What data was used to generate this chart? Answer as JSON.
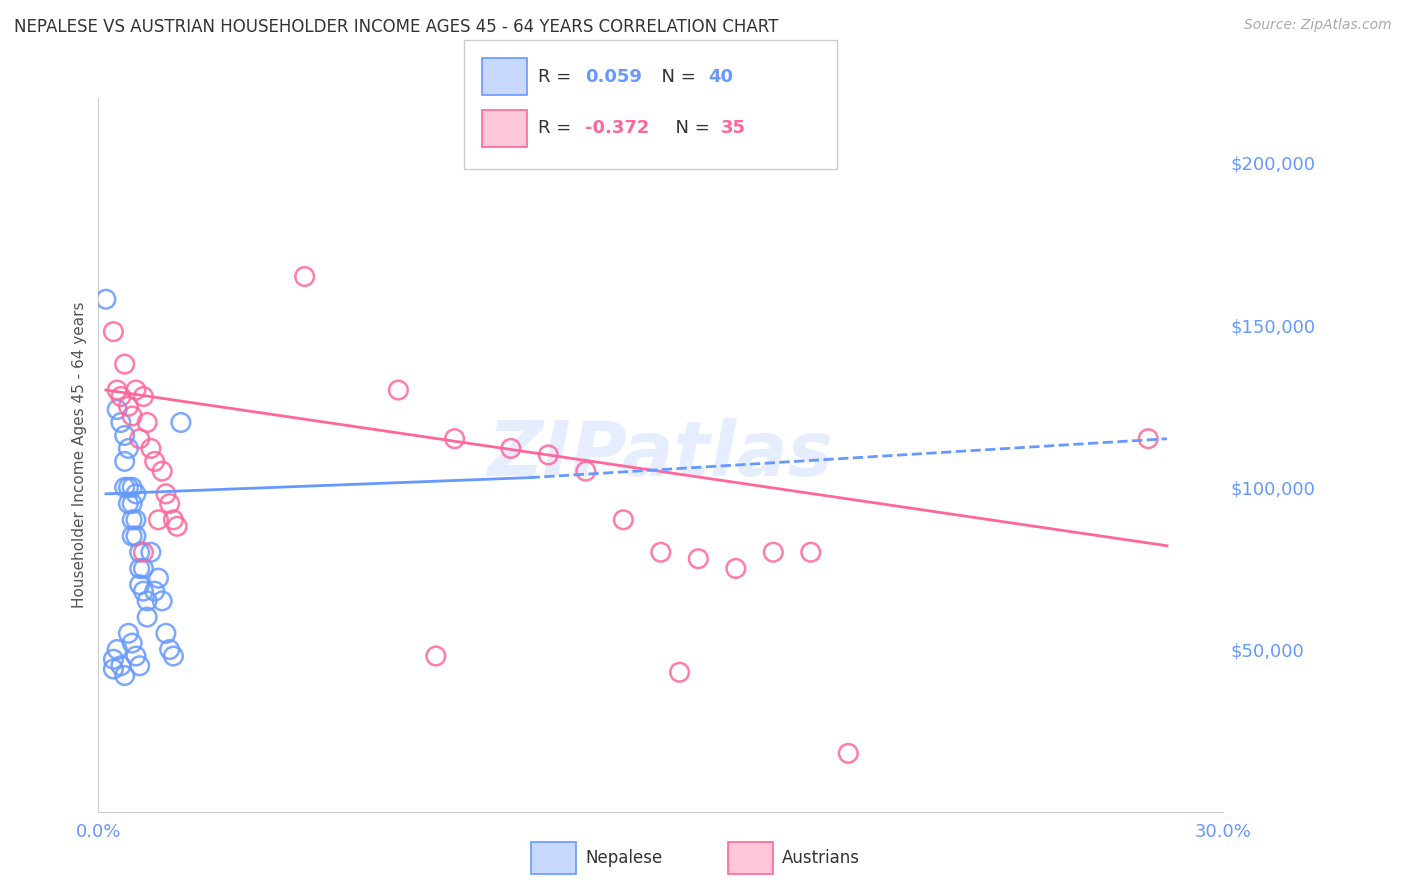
{
  "title": "NEPALESE VS AUSTRIAN HOUSEHOLDER INCOME AGES 45 - 64 YEARS CORRELATION CHART",
  "source": "Source: ZipAtlas.com",
  "ylabel": "Householder Income Ages 45 - 64 years",
  "xlim": [
    0.0,
    0.3
  ],
  "ylim": [
    0,
    220000
  ],
  "yticks": [
    0,
    50000,
    100000,
    150000,
    200000
  ],
  "ytick_labels": [
    "",
    "$50,000",
    "$100,000",
    "$150,000",
    "$200,000"
  ],
  "nepalese_color": "#6699ff",
  "austrian_color": "#ff6699",
  "nepalese_scatter": [
    [
      0.002,
      158000
    ],
    [
      0.005,
      124000
    ],
    [
      0.006,
      120000
    ],
    [
      0.007,
      116000
    ],
    [
      0.007,
      108000
    ],
    [
      0.007,
      100000
    ],
    [
      0.008,
      112000
    ],
    [
      0.008,
      100000
    ],
    [
      0.008,
      95000
    ],
    [
      0.009,
      100000
    ],
    [
      0.009,
      95000
    ],
    [
      0.009,
      90000
    ],
    [
      0.009,
      85000
    ],
    [
      0.01,
      98000
    ],
    [
      0.01,
      90000
    ],
    [
      0.01,
      85000
    ],
    [
      0.011,
      80000
    ],
    [
      0.011,
      75000
    ],
    [
      0.011,
      70000
    ],
    [
      0.012,
      75000
    ],
    [
      0.012,
      68000
    ],
    [
      0.013,
      65000
    ],
    [
      0.013,
      60000
    ],
    [
      0.014,
      80000
    ],
    [
      0.015,
      68000
    ],
    [
      0.016,
      72000
    ],
    [
      0.017,
      65000
    ],
    [
      0.018,
      55000
    ],
    [
      0.019,
      50000
    ],
    [
      0.02,
      48000
    ],
    [
      0.004,
      47000
    ],
    [
      0.004,
      44000
    ],
    [
      0.005,
      50000
    ],
    [
      0.006,
      45000
    ],
    [
      0.007,
      42000
    ],
    [
      0.022,
      120000
    ],
    [
      0.008,
      55000
    ],
    [
      0.009,
      52000
    ],
    [
      0.01,
      48000
    ],
    [
      0.011,
      45000
    ]
  ],
  "austrian_scatter": [
    [
      0.004,
      148000
    ],
    [
      0.005,
      130000
    ],
    [
      0.006,
      128000
    ],
    [
      0.007,
      138000
    ],
    [
      0.008,
      125000
    ],
    [
      0.009,
      122000
    ],
    [
      0.01,
      130000
    ],
    [
      0.011,
      115000
    ],
    [
      0.012,
      128000
    ],
    [
      0.013,
      120000
    ],
    [
      0.014,
      112000
    ],
    [
      0.015,
      108000
    ],
    [
      0.016,
      90000
    ],
    [
      0.017,
      105000
    ],
    [
      0.018,
      98000
    ],
    [
      0.019,
      95000
    ],
    [
      0.02,
      90000
    ],
    [
      0.021,
      88000
    ],
    [
      0.055,
      165000
    ],
    [
      0.08,
      130000
    ],
    [
      0.095,
      115000
    ],
    [
      0.11,
      112000
    ],
    [
      0.12,
      110000
    ],
    [
      0.13,
      105000
    ],
    [
      0.14,
      90000
    ],
    [
      0.15,
      80000
    ],
    [
      0.16,
      78000
    ],
    [
      0.17,
      75000
    ],
    [
      0.18,
      80000
    ],
    [
      0.19,
      80000
    ],
    [
      0.155,
      43000
    ],
    [
      0.2,
      18000
    ],
    [
      0.09,
      48000
    ],
    [
      0.28,
      115000
    ],
    [
      0.012,
      80000
    ]
  ],
  "nepalese_trendline_x": [
    0.002,
    0.115
  ],
  "nepalese_trendline_y": [
    98000,
    103000
  ],
  "austrian_trendline_x": [
    0.002,
    0.285
  ],
  "austrian_trendline_y": [
    130000,
    82000
  ],
  "background_color": "#ffffff",
  "grid_color": "#dddddd",
  "title_color": "#333333",
  "ytick_color": "#6699ff",
  "watermark": "ZIPatlas"
}
